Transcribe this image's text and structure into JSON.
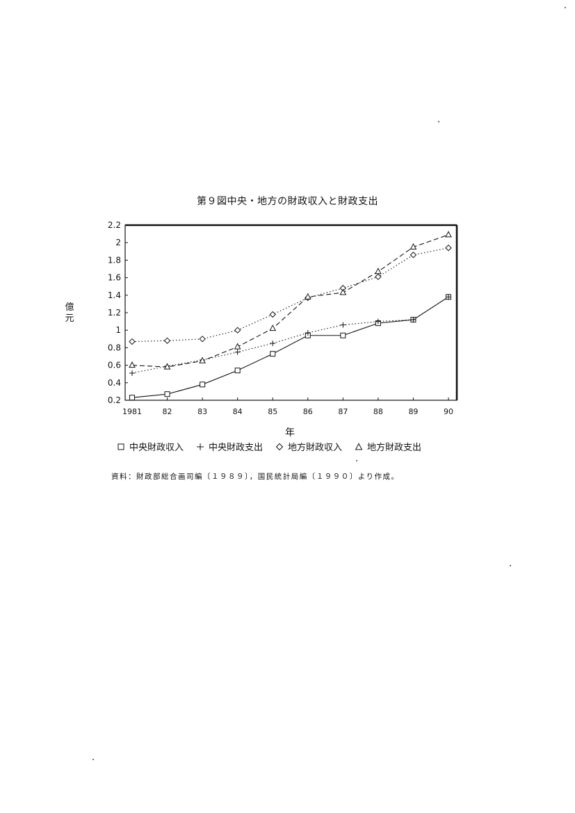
{
  "chart_data": {
    "type": "line",
    "title": "第９図中央・地方の財政収入と財政支出",
    "ylabel": "億元",
    "xlabel": "年",
    "x_tick_labels": [
      "1981",
      "82",
      "83",
      "84",
      "85",
      "86",
      "87",
      "88",
      "89",
      "90"
    ],
    "y_tick_labels": [
      "0.2",
      "0.4",
      "0.6",
      "0.8",
      "1",
      "1.2",
      "1.4",
      "1.6",
      "1.8",
      "2",
      "2.2"
    ],
    "ylim": [
      0.2,
      2.2
    ],
    "grid": false,
    "legend_position": "bottom",
    "series": [
      {
        "name": "中央財政収入",
        "marker": "square",
        "line": "solid",
        "values": [
          0.23,
          0.27,
          0.38,
          0.54,
          0.73,
          0.94,
          0.94,
          1.08,
          1.12,
          1.38
        ]
      },
      {
        "name": "中央財政支出",
        "marker": "plus",
        "line": "dotted",
        "values": [
          0.51,
          0.59,
          0.66,
          0.75,
          0.85,
          0.97,
          1.06,
          1.1,
          1.12,
          1.38
        ]
      },
      {
        "name": "地方財政収入",
        "marker": "diamond",
        "line": "dotted",
        "values": [
          0.87,
          0.88,
          0.9,
          1.0,
          1.18,
          1.37,
          1.48,
          1.61,
          1.86,
          1.94
        ]
      },
      {
        "name": "地方財政支出",
        "marker": "triangle",
        "line": "dashed",
        "values": [
          0.6,
          0.58,
          0.65,
          0.81,
          1.02,
          1.38,
          1.43,
          1.67,
          1.95,
          2.09
        ]
      }
    ]
  },
  "source_note": "資料：財政部総合画司編〔１９８９〕，国民統計局編〔１９９０〕より作成。"
}
